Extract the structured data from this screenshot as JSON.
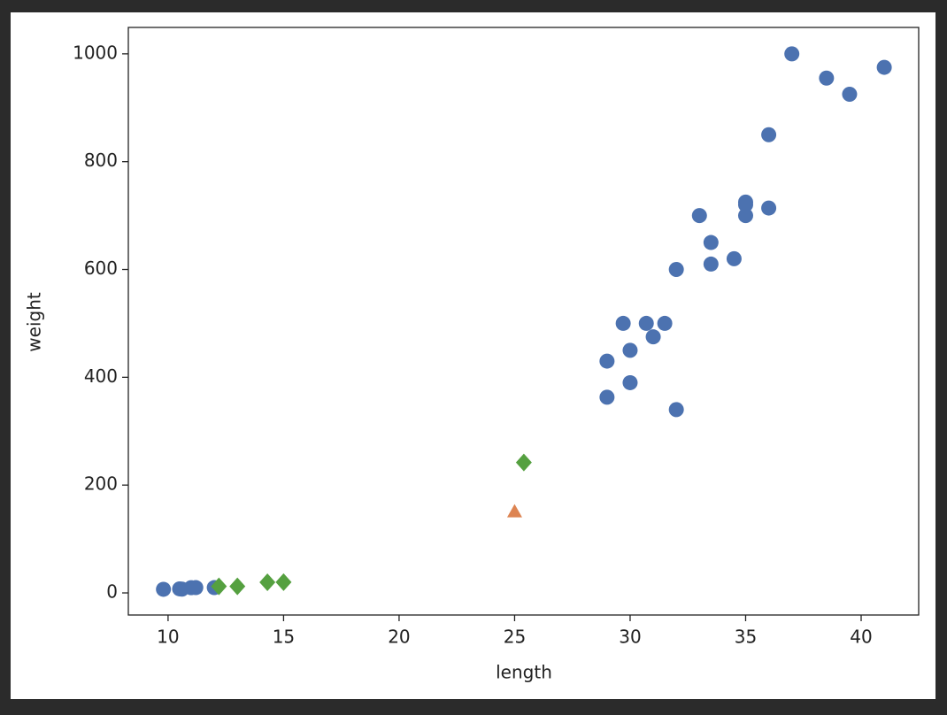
{
  "chart_data": {
    "type": "scatter",
    "xlabel": "length",
    "ylabel": "weight",
    "xlim": [
      8.28,
      42.49
    ],
    "ylim": [
      -41,
      1049
    ],
    "xticks": [
      10,
      15,
      20,
      25,
      30,
      35,
      40
    ],
    "yticks": [
      0,
      200,
      400,
      600,
      800,
      1000
    ],
    "series": [
      {
        "color": "#4c72b0",
        "marker": "circle",
        "x": [
          9.8,
          10.5,
          10.6,
          11.0,
          11.2,
          12.0,
          29.0,
          29.0,
          29.7,
          30.0,
          30.0,
          30.7,
          31.0,
          31.5,
          32.0,
          32.0,
          33.0,
          33.5,
          33.5,
          34.5,
          35.0,
          35.0,
          35.0,
          36.0,
          36.0,
          37.0,
          38.5,
          39.5,
          41.0
        ],
        "values": [
          6.7,
          7.5,
          7.0,
          9.7,
          9.8,
          9.8,
          363,
          430,
          500,
          390,
          450,
          500,
          475,
          500,
          340,
          600,
          700,
          610,
          650,
          620,
          700,
          725,
          720,
          714,
          850,
          1000,
          955,
          925,
          975
        ]
      },
      {
        "color": "#dd8452",
        "marker": "triangle",
        "x": [
          25
        ],
        "values": [
          150
        ]
      },
      {
        "color": "#55a040",
        "marker": "diamond",
        "x": [
          12.2,
          13.0,
          14.3,
          15.0,
          25.4
        ],
        "values": [
          12.2,
          12.2,
          19.7,
          19.9,
          242
        ]
      }
    ]
  }
}
